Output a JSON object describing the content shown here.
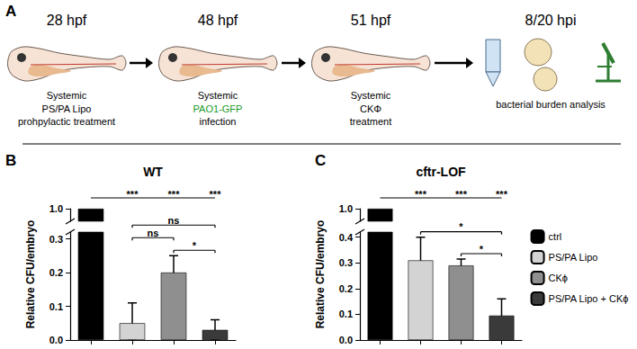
{
  "panel_labels": [
    "A",
    "B",
    "C"
  ],
  "diagram": {
    "steps": [
      {
        "time": "28 hpf",
        "route": "Systemic",
        "lines": [
          "PS/PA Lipo",
          "prohpylactic treatment"
        ]
      },
      {
        "time": "48 hpf",
        "route": "Systemic",
        "lines": [
          "PAO1-GFP",
          "infection"
        ]
      },
      {
        "time": "51 hpf",
        "route": "Systemic",
        "lines": [
          "CKΦ",
          "treatment"
        ]
      },
      {
        "time": "8/20 hpi",
        "lines": [
          "bacterial burden analysis"
        ]
      }
    ]
  },
  "chart_data": [
    {
      "type": "bar",
      "title": "WT",
      "ylabel": "Relative CFU/embryo",
      "categories": [
        "ctrl",
        "PS/PA Lipo",
        "CKϕ",
        "PS/PA Lipo + CKϕ"
      ],
      "values": [
        1,
        0.05,
        0.2,
        0.03
      ],
      "errors": [
        null,
        0.06,
        0.05,
        0.03
      ],
      "colors": [
        "#000000",
        "#d3d3d3",
        "#8f8f8f",
        "#3a3a3a"
      ],
      "ylim": [
        0,
        1
      ],
      "ybreak": [
        0.32,
        0.97
      ],
      "yticks": [
        {
          "value": 0,
          "label": "0.0"
        },
        0.1,
        0.2,
        0.3,
        {
          "value": 1,
          "label": "1.0"
        }
      ],
      "grid": false,
      "tick_labels": "y",
      "significance": [
        {
          "pair": [
            "ctrl",
            "PS/PA Lipo"
          ],
          "label": "***"
        },
        {
          "pair": [
            "ctrl",
            "CKϕ"
          ],
          "label": "***"
        },
        {
          "pair": [
            "ctrl",
            "PS/PA Lipo + CKϕ"
          ],
          "label": "***"
        },
        {
          "pair": [
            "CKϕ",
            "PS/PA Lipo + CKϕ"
          ],
          "label": "*"
        },
        {
          "pair": [
            "PS/PA Lipo",
            "CKϕ"
          ],
          "label": "ns"
        },
        {
          "pair": [
            "PS/PA Lipo",
            "PS/PA Lipo + CKϕ"
          ],
          "label": "ns"
        }
      ]
    },
    {
      "type": "bar",
      "title": "cftr-LOF",
      "ylabel": "Relative CFU/embryo",
      "categories": [
        "ctrl",
        "PS/PA Lipo",
        "CKϕ",
        "PS/PA Lipo + CKϕ"
      ],
      "values": [
        1,
        0.31,
        0.29,
        0.095
      ],
      "errors": [
        null,
        0.09,
        0.025,
        0.065
      ],
      "colors": [
        "#000000",
        "#d3d3d3",
        "#8f8f8f",
        "#3a3a3a"
      ],
      "ylim": [
        0,
        1
      ],
      "ybreak": [
        0.42,
        0.97
      ],
      "yticks": [
        {
          "value": 0,
          "label": "0.0"
        },
        0.1,
        0.2,
        0.3,
        0.4,
        {
          "value": 1,
          "label": "1.0"
        }
      ],
      "grid": false,
      "tick_labels": "y",
      "legend": "right",
      "significance": [
        {
          "pair": [
            "ctrl",
            "PS/PA Lipo"
          ],
          "label": "***"
        },
        {
          "pair": [
            "ctrl",
            "CKϕ"
          ],
          "label": "***"
        },
        {
          "pair": [
            "ctrl",
            "PS/PA Lipo + CKϕ"
          ],
          "label": "***"
        },
        {
          "pair": [
            "CKϕ",
            "PS/PA Lipo + CKϕ"
          ],
          "label": "*"
        },
        {
          "pair": [
            "PS/PA Lipo",
            "PS/PA Lipo + CKϕ"
          ],
          "label": "*"
        }
      ]
    }
  ]
}
